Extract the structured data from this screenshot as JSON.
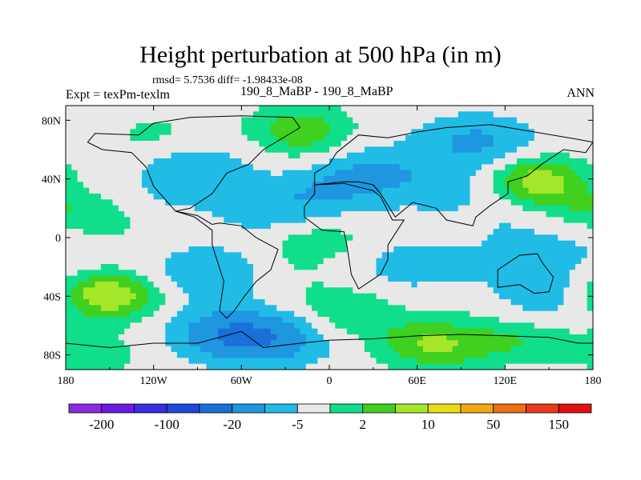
{
  "header": {
    "title": "Height perturbation at 500 hPa (in m)",
    "stats": "rmsd= 5.7536 diff= -1.98433e-08",
    "left_label": "Expt = texPm-texlm",
    "center_label": "190_8_MaBP - 190_8_MaBP",
    "right_label": "ANN"
  },
  "chart_data": {
    "type": "heatmap",
    "title": "Height perturbation at 500 hPa (in m)",
    "variable": "500 hPa height perturbation",
    "units": "m",
    "x_range": [
      -180,
      180
    ],
    "y_range": [
      -90,
      90
    ],
    "x_ticks": [
      {
        "value": -180,
        "label": "180"
      },
      {
        "value": -120,
        "label": "120W"
      },
      {
        "value": -60,
        "label": "60W"
      },
      {
        "value": 0,
        "label": "0"
      },
      {
        "value": 60,
        "label": "60E"
      },
      {
        "value": 120,
        "label": "120E"
      },
      {
        "value": 180,
        "label": "180"
      }
    ],
    "y_ticks": [
      {
        "value": 80,
        "label": "80N"
      },
      {
        "value": 40,
        "label": "40N"
      },
      {
        "value": 0,
        "label": "0"
      },
      {
        "value": -40,
        "label": "40S"
      },
      {
        "value": -80,
        "label": "80S"
      }
    ],
    "colorbar": {
      "colors": [
        "#8a2be2",
        "#6a1be0",
        "#3a2ee0",
        "#1f4ad8",
        "#1a70d8",
        "#1e96e0",
        "#20bce6",
        "#e8e8e8",
        "#10de8a",
        "#40d020",
        "#a6e628",
        "#e8dc14",
        "#eeaa10",
        "#ee7012",
        "#e83a1a",
        "#e01010"
      ],
      "labels": [
        {
          "index": 1,
          "text": "-200"
        },
        {
          "index": 3,
          "text": "-100"
        },
        {
          "index": 5,
          "text": "-20"
        },
        {
          "index": 7,
          "text": "-5"
        },
        {
          "index": 9,
          "text": "2"
        },
        {
          "index": 11,
          "text": "10"
        },
        {
          "index": 13,
          "text": "50"
        },
        {
          "index": 15,
          "text": "150"
        }
      ]
    },
    "field_features": [
      {
        "lon": -150,
        "lat": 15,
        "amp": 8
      },
      {
        "lon": -150,
        "lat": -40,
        "amp": 14
      },
      {
        "lon": -160,
        "lat": -80,
        "amp": 5
      },
      {
        "lon": -130,
        "lat": 20,
        "amp": -5
      },
      {
        "lon": -90,
        "lat": 45,
        "amp": -9
      },
      {
        "lon": -120,
        "lat": 70,
        "amp": 4
      },
      {
        "lon": -80,
        "lat": -25,
        "amp": -10
      },
      {
        "lon": -70,
        "lat": -65,
        "amp": -16
      },
      {
        "lon": -40,
        "lat": -70,
        "amp": -14
      },
      {
        "lon": -40,
        "lat": 20,
        "amp": -5
      },
      {
        "lon": -35,
        "lat": -25,
        "amp": 3
      },
      {
        "lon": -30,
        "lat": 20,
        "amp": -4
      },
      {
        "lon": -20,
        "lat": 75,
        "amp": 9
      },
      {
        "lon": -10,
        "lat": 55,
        "amp": 3
      },
      {
        "lon": -10,
        "lat": 0,
        "amp": 6
      },
      {
        "lon": 5,
        "lat": 35,
        "amp": -8
      },
      {
        "lon": 10,
        "lat": -50,
        "amp": 7
      },
      {
        "lon": 30,
        "lat": 45,
        "amp": -9
      },
      {
        "lon": 60,
        "lat": -20,
        "amp": -7
      },
      {
        "lon": 60,
        "lat": -70,
        "amp": 5
      },
      {
        "lon": 75,
        "lat": -75,
        "amp": 7
      },
      {
        "lon": 80,
        "lat": 35,
        "amp": -6
      },
      {
        "lon": 100,
        "lat": 65,
        "amp": -12
      },
      {
        "lon": 100,
        "lat": -35,
        "amp": 4
      },
      {
        "lon": 120,
        "lat": -25,
        "amp": -6
      },
      {
        "lon": 120,
        "lat": -70,
        "amp": 4
      },
      {
        "lon": 130,
        "lat": 10,
        "amp": -4
      },
      {
        "lon": 140,
        "lat": 40,
        "amp": 13
      },
      {
        "lon": 140,
        "lat": -70,
        "amp": 3
      },
      {
        "lon": 150,
        "lat": -40,
        "amp": -8
      },
      {
        "lon": 160,
        "lat": 20,
        "amp": 5
      },
      {
        "lon": 165,
        "lat": -10,
        "amp": -4
      },
      {
        "lon": 175,
        "lat": -35,
        "amp": 3
      }
    ],
    "coastline": [
      {
        "name": "north-america-greenland",
        "points": [
          [
            -120,
            78
          ],
          [
            -95,
            82
          ],
          [
            -60,
            83
          ],
          [
            -25,
            82
          ],
          [
            -20,
            75
          ],
          [
            -45,
            60
          ],
          [
            -55,
            50
          ],
          [
            -70,
            44
          ],
          [
            -80,
            30
          ],
          [
            -95,
            20
          ],
          [
            -105,
            18
          ],
          [
            -120,
            35
          ],
          [
            -125,
            48
          ],
          [
            -135,
            58
          ],
          [
            -155,
            60
          ],
          [
            -165,
            65
          ],
          [
            -160,
            71
          ],
          [
            -130,
            70
          ],
          [
            -120,
            78
          ]
        ]
      },
      {
        "name": "central-south-america",
        "points": [
          [
            -105,
            18
          ],
          [
            -90,
            15
          ],
          [
            -80,
            9
          ],
          [
            -75,
            10
          ],
          [
            -60,
            8
          ],
          [
            -50,
            0
          ],
          [
            -35,
            -8
          ],
          [
            -40,
            -22
          ],
          [
            -50,
            -30
          ],
          [
            -58,
            -40
          ],
          [
            -65,
            -50
          ],
          [
            -70,
            -55
          ],
          [
            -75,
            -50
          ],
          [
            -72,
            -30
          ],
          [
            -80,
            -5
          ],
          [
            -80,
            5
          ],
          [
            -92,
            14
          ],
          [
            -105,
            18
          ]
        ]
      },
      {
        "name": "eurasia",
        "points": [
          [
            -10,
            36
          ],
          [
            -10,
            44
          ],
          [
            0,
            50
          ],
          [
            5,
            58
          ],
          [
            10,
            62
          ],
          [
            20,
            70
          ],
          [
            40,
            68
          ],
          [
            60,
            72
          ],
          [
            80,
            75
          ],
          [
            110,
            77
          ],
          [
            140,
            72
          ],
          [
            170,
            67
          ],
          [
            180,
            65
          ],
          [
            175,
            58
          ],
          [
            160,
            60
          ],
          [
            145,
            50
          ],
          [
            135,
            42
          ],
          [
            122,
            38
          ],
          [
            122,
            30
          ],
          [
            110,
            22
          ],
          [
            100,
            14
          ],
          [
            98,
            8
          ],
          [
            80,
            12
          ],
          [
            73,
            20
          ],
          [
            57,
            24
          ],
          [
            45,
            14
          ],
          [
            35,
            30
          ],
          [
            30,
            36
          ],
          [
            20,
            38
          ],
          [
            10,
            38
          ],
          [
            -10,
            36
          ]
        ]
      },
      {
        "name": "africa",
        "points": [
          [
            -10,
            36
          ],
          [
            10,
            37
          ],
          [
            30,
            32
          ],
          [
            35,
            28
          ],
          [
            43,
            12
          ],
          [
            51,
            12
          ],
          [
            40,
            -5
          ],
          [
            40,
            -15
          ],
          [
            35,
            -25
          ],
          [
            20,
            -35
          ],
          [
            15,
            -25
          ],
          [
            12,
            -5
          ],
          [
            10,
            4
          ],
          [
            -5,
            5
          ],
          [
            -17,
            14
          ],
          [
            -17,
            21
          ],
          [
            -10,
            30
          ],
          [
            -10,
            36
          ]
        ]
      },
      {
        "name": "australia",
        "points": [
          [
            115,
            -22
          ],
          [
            130,
            -12
          ],
          [
            142,
            -11
          ],
          [
            146,
            -18
          ],
          [
            153,
            -27
          ],
          [
            150,
            -37
          ],
          [
            140,
            -38
          ],
          [
            130,
            -32
          ],
          [
            115,
            -34
          ],
          [
            115,
            -22
          ]
        ]
      },
      {
        "name": "antarctica",
        "points": [
          [
            -180,
            -72
          ],
          [
            -150,
            -75
          ],
          [
            -120,
            -72
          ],
          [
            -90,
            -72
          ],
          [
            -60,
            -64
          ],
          [
            -45,
            -75
          ],
          [
            -20,
            -72
          ],
          [
            0,
            -70
          ],
          [
            30,
            -69
          ],
          [
            60,
            -67
          ],
          [
            90,
            -66
          ],
          [
            120,
            -67
          ],
          [
            150,
            -68
          ],
          [
            170,
            -72
          ],
          [
            180,
            -72
          ]
        ],
        "closed": false
      }
    ]
  }
}
